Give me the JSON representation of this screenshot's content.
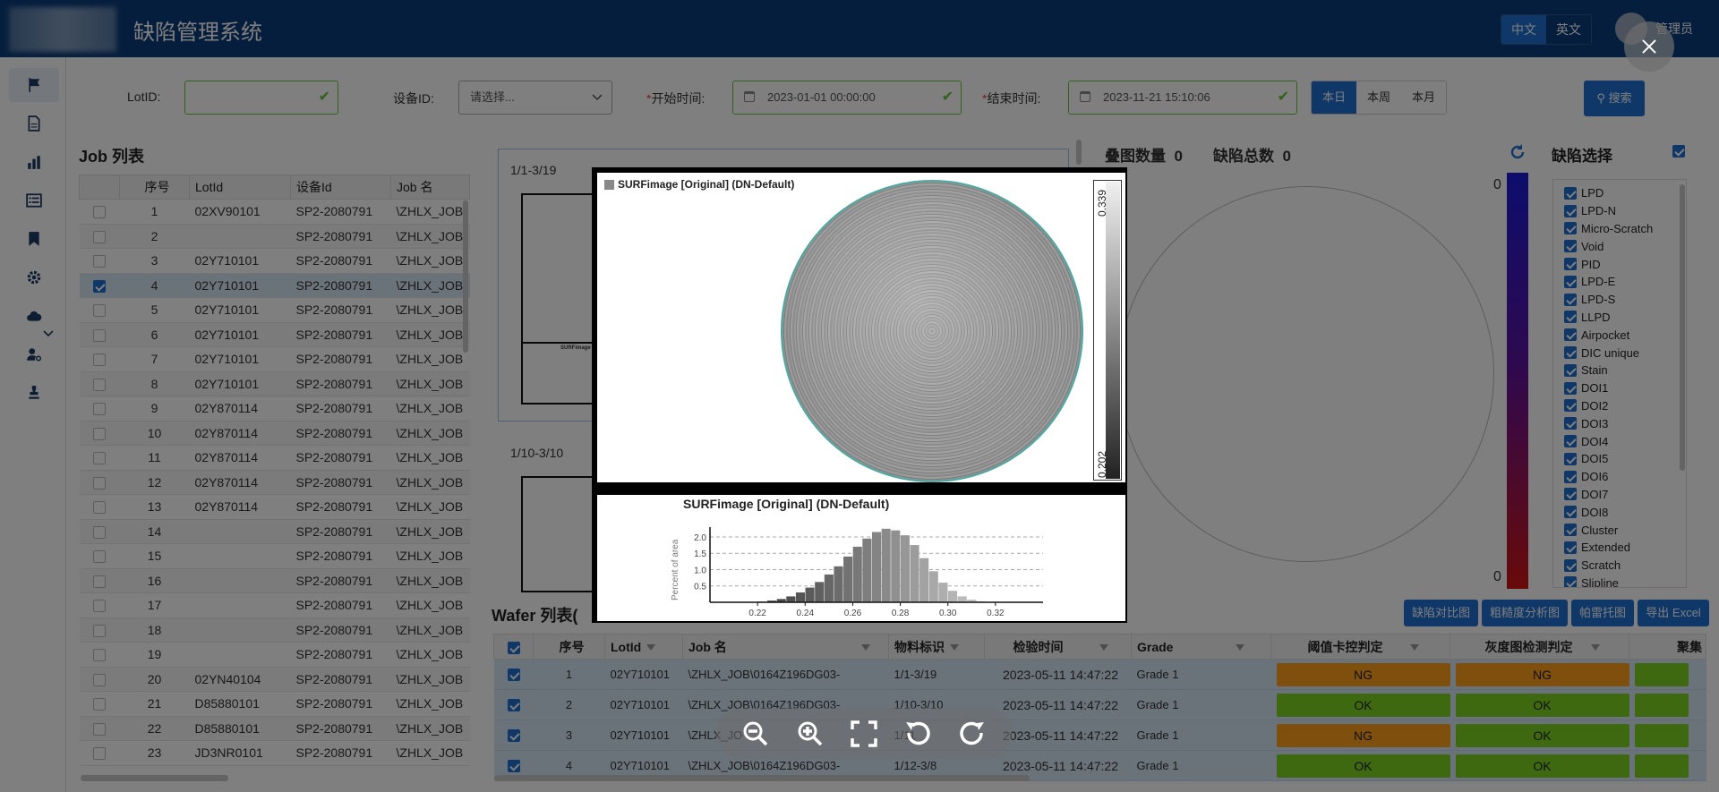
{
  "header": {
    "title": "缺陷管理系统",
    "lang_zh": "中文",
    "lang_en": "英文",
    "user": "管理员"
  },
  "filters": {
    "lot_label": "LotID:",
    "lot_value": "",
    "device_label": "设备ID:",
    "device_placeholder": "请选择...",
    "start_label": "开始时间:",
    "start_value": "2023-01-01 00:00:00",
    "end_label": "结束时间:",
    "end_value": "2023-11-21 15:10:06",
    "range_today": "本日",
    "range_week": "本周",
    "range_month": "本月",
    "search_label": "搜索",
    "required_mark": "*"
  },
  "job_list": {
    "title": "Job 列表",
    "columns": [
      "序号",
      "LotId",
      "设备Id",
      "Job 名"
    ],
    "rows": [
      {
        "no": "1",
        "lot": "02XV90101",
        "device": "SP2-2080791",
        "job": "\\ZHLX_JOB"
      },
      {
        "no": "2",
        "lot": "",
        "device": "SP2-2080791",
        "job": "\\ZHLX_JOB"
      },
      {
        "no": "3",
        "lot": "02Y710101",
        "device": "SP2-2080791",
        "job": "\\ZHLX_JOB"
      },
      {
        "no": "4",
        "lot": "02Y710101",
        "device": "SP2-2080791",
        "job": "\\ZHLX_JOB"
      },
      {
        "no": "5",
        "lot": "02Y710101",
        "device": "SP2-2080791",
        "job": "\\ZHLX_JOB"
      },
      {
        "no": "6",
        "lot": "02Y710101",
        "device": "SP2-2080791",
        "job": "\\ZHLX_JOB"
      },
      {
        "no": "7",
        "lot": "02Y710101",
        "device": "SP2-2080791",
        "job": "\\ZHLX_JOB"
      },
      {
        "no": "8",
        "lot": "02Y710101",
        "device": "SP2-2080791",
        "job": "\\ZHLX_JOB"
      },
      {
        "no": "9",
        "lot": "02Y870114",
        "device": "SP2-2080791",
        "job": "\\ZHLX_JOB"
      },
      {
        "no": "10",
        "lot": "02Y870114",
        "device": "SP2-2080791",
        "job": "\\ZHLX_JOB"
      },
      {
        "no": "11",
        "lot": "02Y870114",
        "device": "SP2-2080791",
        "job": "\\ZHLX_JOB"
      },
      {
        "no": "12",
        "lot": "02Y870114",
        "device": "SP2-2080791",
        "job": "\\ZHLX_JOB"
      },
      {
        "no": "13",
        "lot": "02Y870114",
        "device": "SP2-2080791",
        "job": "\\ZHLX_JOB"
      },
      {
        "no": "14",
        "lot": "",
        "device": "SP2-2080791",
        "job": "\\ZHLX_JOB"
      },
      {
        "no": "15",
        "lot": "",
        "device": "SP2-2080791",
        "job": "\\ZHLX_JOB"
      },
      {
        "no": "16",
        "lot": "",
        "device": "SP2-2080791",
        "job": "\\ZHLX_JOB"
      },
      {
        "no": "17",
        "lot": "",
        "device": "SP2-2080791",
        "job": "\\ZHLX_JOB"
      },
      {
        "no": "18",
        "lot": "",
        "device": "SP2-2080791",
        "job": "\\ZHLX_JOB"
      },
      {
        "no": "19",
        "lot": "",
        "device": "SP2-2080791",
        "job": "\\ZHLX_JOB"
      },
      {
        "no": "20",
        "lot": "02YN40104",
        "device": "SP2-2080791",
        "job": "\\ZHLX_JOB"
      },
      {
        "no": "21",
        "lot": "D85880101",
        "device": "SP2-2080791",
        "job": "\\ZHLX_JOB"
      },
      {
        "no": "22",
        "lot": "D85880101",
        "device": "SP2-2080791",
        "job": "\\ZHLX_JOB"
      },
      {
        "no": "23",
        "lot": "JD3NR0101",
        "device": "SP2-2080791",
        "job": "\\ZHLX_JOB"
      }
    ]
  },
  "images": {
    "first_label": "1/1-3/19",
    "second_label": "1/10-3/10",
    "mini_caption": "SURFimage"
  },
  "stats": {
    "overlay_label": "叠图数量",
    "overlay_count": "0",
    "defect_total_label": "缺陷总数",
    "defect_total": "0",
    "scale_top": "0",
    "scale_bottom": "0"
  },
  "defect_select": {
    "title": "缺陷选择",
    "items": [
      "LPD",
      "LPD-N",
      "Micro-Scratch",
      "Void",
      "PID",
      "LPD-E",
      "LPD-S",
      "LLPD",
      "Airpocket",
      "DIC unique",
      "Stain",
      "DOI1",
      "DOI2",
      "DOI3",
      "DOI4",
      "DOI5",
      "DOI6",
      "DOI7",
      "DOI8",
      "Cluster",
      "Extended",
      "Scratch",
      "Slipline"
    ]
  },
  "wafer_list": {
    "title": "Wafer 列表(",
    "buttons": [
      "缺陷对比图",
      "粗糙度分析图",
      "帕雷托图",
      "导出 Excel"
    ],
    "columns": [
      "序号",
      "LotId",
      "Job 名",
      "物料标识",
      "检验时间",
      "Grade",
      "阈值卡控判定",
      "灰度图检测判定",
      "聚集"
    ],
    "rows": [
      {
        "no": "1",
        "lot": "02Y710101",
        "job": "\\ZHLX_JOB\\0164Z196DG03-",
        "material": "1/1-3/19",
        "time": "2023-05-11 14:47:22",
        "grade": "Grade 1",
        "threshold": "NG",
        "gray": "NG"
      },
      {
        "no": "2",
        "lot": "02Y710101",
        "job": "\\ZHLX_JOB\\0164Z196DG03-",
        "material": "1/10-3/10",
        "time": "2023-05-11 14:47:22",
        "grade": "Grade 1",
        "threshold": "OK",
        "gray": "OK"
      },
      {
        "no": "3",
        "lot": "02Y710101",
        "job": "\\ZHLX_JO",
        "material": "1/11",
        "time": "2023-05-11 14:47:22",
        "grade": "Grade 1",
        "threshold": "NG",
        "gray": "OK"
      },
      {
        "no": "4",
        "lot": "02Y710101",
        "job": "\\ZHLX_JOB\\0164Z196DG03-",
        "material": "1/12-3/8",
        "time": "2023-05-11 14:47:22",
        "grade": "Grade 1",
        "threshold": "OK",
        "gray": "OK"
      }
    ]
  },
  "viewer": {
    "caption": "SURFimage [Original] (DN-Default)",
    "colorbar_max": "0.339",
    "colorbar_min": "0.202",
    "hist_title": "SURFimage [Original] (DN-Default)",
    "hist_ylabel": "Percent of area",
    "chart_data": {
      "type": "bar",
      "title": "SURFimage [Original] (DN-Default)",
      "xlabel": "",
      "ylabel": "Percent of area",
      "x_ticks": [
        "0.22",
        "0.24",
        "0.26",
        "0.28",
        "0.30",
        "0.32"
      ],
      "y_ticks": [
        "0.5",
        "1.0",
        "1.5",
        "2.0"
      ],
      "xlim": [
        0.2,
        0.34
      ],
      "ylim": [
        0,
        2.3
      ],
      "x": [
        0.222,
        0.226,
        0.23,
        0.234,
        0.238,
        0.242,
        0.246,
        0.25,
        0.254,
        0.258,
        0.262,
        0.266,
        0.27,
        0.274,
        0.278,
        0.282,
        0.286,
        0.29,
        0.294,
        0.298,
        0.302,
        0.306,
        0.31,
        0.314
      ],
      "values": [
        0.02,
        0.05,
        0.1,
        0.18,
        0.3,
        0.45,
        0.62,
        0.85,
        1.1,
        1.4,
        1.7,
        1.95,
        2.15,
        2.25,
        2.2,
        2.05,
        1.75,
        1.35,
        0.95,
        0.6,
        0.35,
        0.18,
        0.08,
        0.03
      ]
    }
  },
  "colors": {
    "header_bg": "#0d3d7a",
    "primary": "#1f6fd0",
    "ok": "#7ed321",
    "ng": "#ff9f1a"
  }
}
